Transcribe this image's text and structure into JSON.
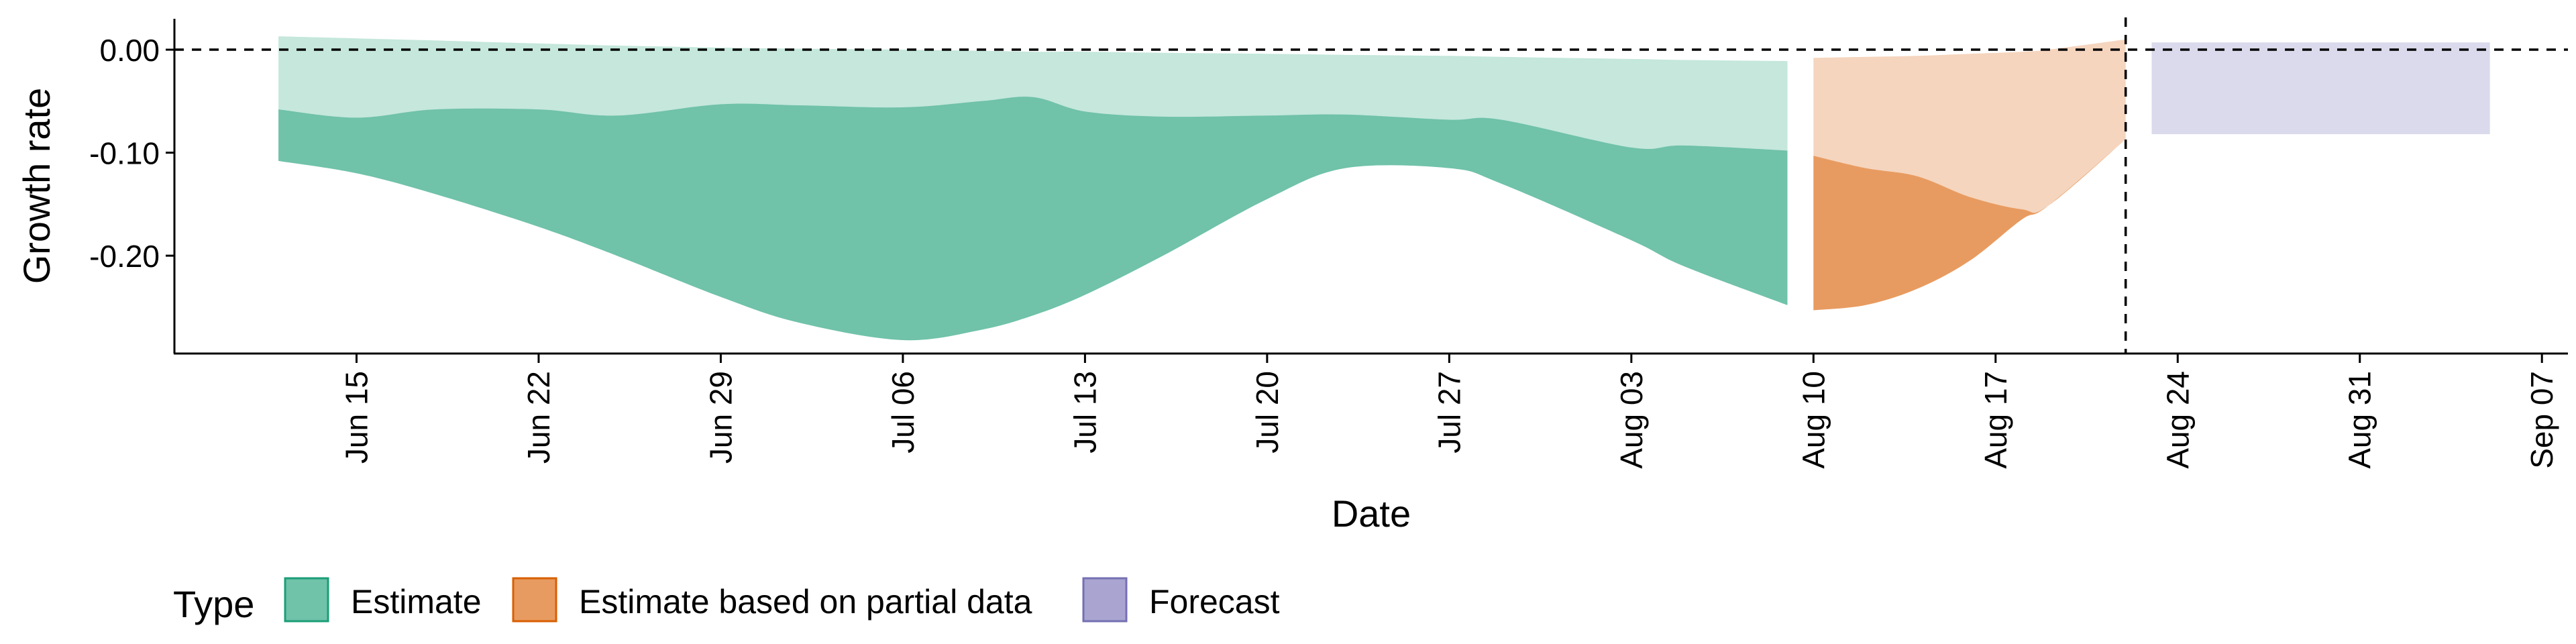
{
  "chart_data": {
    "type": "area",
    "xlabel": "Date",
    "ylabel": "Growth rate",
    "x_axis": {
      "type": "date",
      "range": [
        "2020-06-08",
        "2020-09-08"
      ],
      "ticks": [
        {
          "date": "2020-06-15",
          "label": "Jun 15"
        },
        {
          "date": "2020-06-22",
          "label": "Jun 22"
        },
        {
          "date": "2020-06-29",
          "label": "Jun 29"
        },
        {
          "date": "2020-07-06",
          "label": "Jul 06"
        },
        {
          "date": "2020-07-13",
          "label": "Jul 13"
        },
        {
          "date": "2020-07-20",
          "label": "Jul 20"
        },
        {
          "date": "2020-07-27",
          "label": "Jul 27"
        },
        {
          "date": "2020-08-03",
          "label": "Aug 03"
        },
        {
          "date": "2020-08-10",
          "label": "Aug 10"
        },
        {
          "date": "2020-08-17",
          "label": "Aug 17"
        },
        {
          "date": "2020-08-24",
          "label": "Aug 24"
        },
        {
          "date": "2020-08-31",
          "label": "Aug 31"
        },
        {
          "date": "2020-09-07",
          "label": "Sep 07"
        }
      ]
    },
    "y_axis": {
      "range": [
        -0.295,
        0.03
      ],
      "ticks": [
        {
          "value": 0.0,
          "label": "0.00"
        },
        {
          "value": -0.1,
          "label": "-0.10"
        },
        {
          "value": -0.2,
          "label": "-0.20"
        }
      ]
    },
    "reference_lines": [
      {
        "axis": "y",
        "value": 0.0,
        "style": "dashed"
      },
      {
        "axis": "x",
        "value": "2020-08-22",
        "style": "dashed"
      }
    ],
    "legend": {
      "title": "Type",
      "position": "bottom",
      "entries": [
        {
          "label": "Estimate",
          "fill": "#70c2a9",
          "stroke": "#1b9e77"
        },
        {
          "label": "Estimate based on partial data",
          "fill": "#e89b60",
          "stroke": "#d95f02"
        },
        {
          "label": "Forecast",
          "fill": "#a9a5d0",
          "stroke": "#7570b3"
        }
      ]
    },
    "series": [
      {
        "type": "Estimate",
        "color_outer": "#c5e7dc",
        "color_inner": "#70c2a9",
        "points": [
          {
            "date": "2020-06-12",
            "outer_upper": 0.013,
            "inner_upper": -0.058,
            "lower": -0.108
          },
          {
            "date": "2020-06-15",
            "outer_upper": 0.011,
            "inner_upper": -0.066,
            "lower": -0.12
          },
          {
            "date": "2020-06-18",
            "outer_upper": 0.009,
            "inner_upper": -0.058,
            "lower": -0.14
          },
          {
            "date": "2020-06-22",
            "outer_upper": 0.006,
            "inner_upper": -0.058,
            "lower": -0.172
          },
          {
            "date": "2020-06-25",
            "outer_upper": 0.004,
            "inner_upper": -0.064,
            "lower": -0.2
          },
          {
            "date": "2020-06-29",
            "outer_upper": 0.002,
            "inner_upper": -0.053,
            "lower": -0.24
          },
          {
            "date": "2020-07-02",
            "outer_upper": 0.001,
            "inner_upper": -0.054,
            "lower": -0.265
          },
          {
            "date": "2020-07-06",
            "outer_upper": 0.0,
            "inner_upper": -0.056,
            "lower": -0.282
          },
          {
            "date": "2020-07-09",
            "outer_upper": -0.001,
            "inner_upper": -0.05,
            "lower": -0.272
          },
          {
            "date": "2020-07-11",
            "outer_upper": -0.002,
            "inner_upper": -0.046,
            "lower": -0.258
          },
          {
            "date": "2020-07-13",
            "outer_upper": -0.002,
            "inner_upper": -0.06,
            "lower": -0.238
          },
          {
            "date": "2020-07-16",
            "outer_upper": -0.003,
            "inner_upper": -0.065,
            "lower": -0.2
          },
          {
            "date": "2020-07-20",
            "outer_upper": -0.004,
            "inner_upper": -0.064,
            "lower": -0.145
          },
          {
            "date": "2020-07-23",
            "outer_upper": -0.005,
            "inner_upper": -0.063,
            "lower": -0.115
          },
          {
            "date": "2020-07-27",
            "outer_upper": -0.006,
            "inner_upper": -0.068,
            "lower": -0.115
          },
          {
            "date": "2020-07-29",
            "outer_upper": -0.007,
            "inner_upper": -0.068,
            "lower": -0.13
          },
          {
            "date": "2020-08-03",
            "outer_upper": -0.009,
            "inner_upper": -0.095,
            "lower": -0.185
          },
          {
            "date": "2020-08-05",
            "outer_upper": -0.01,
            "inner_upper": -0.093,
            "lower": -0.21
          },
          {
            "date": "2020-08-09",
            "outer_upper": -0.011,
            "inner_upper": -0.098,
            "lower": -0.248
          }
        ]
      },
      {
        "type": "Estimate based on partial data",
        "color_outer": "#f5d5be",
        "color_inner": "#e89b60",
        "points": [
          {
            "date": "2020-08-10",
            "outer_upper": -0.008,
            "inner_upper": -0.103,
            "lower": -0.253
          },
          {
            "date": "2020-08-12",
            "outer_upper": -0.007,
            "inner_upper": -0.115,
            "lower": -0.248
          },
          {
            "date": "2020-08-14",
            "outer_upper": -0.006,
            "inner_upper": -0.123,
            "lower": -0.232
          },
          {
            "date": "2020-08-16",
            "outer_upper": -0.004,
            "inner_upper": -0.143,
            "lower": -0.205
          },
          {
            "date": "2020-08-18",
            "outer_upper": -0.002,
            "inner_upper": -0.155,
            "lower": -0.165
          },
          {
            "date": "2020-08-19",
            "outer_upper": 0.0,
            "inner_upper": -0.152,
            "lower": -0.152
          },
          {
            "date": "2020-08-22",
            "outer_upper": 0.01,
            "inner_upper": -0.087,
            "lower": -0.087
          }
        ]
      },
      {
        "type": "Forecast",
        "color_outer": "#dadaec",
        "points": [
          {
            "date": "2020-08-23",
            "outer_upper": 0.007,
            "lower": -0.082
          },
          {
            "date": "2020-09-05",
            "outer_upper": 0.007,
            "lower": -0.082
          }
        ]
      }
    ]
  }
}
